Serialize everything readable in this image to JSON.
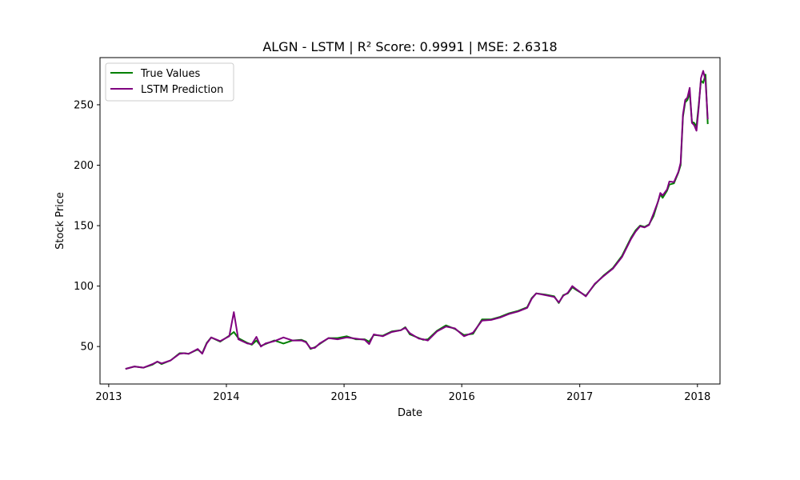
{
  "chart_data": {
    "type": "line",
    "title": "ALGN - LSTM | R² Score: 0.9991 | MSE: 2.6318",
    "xlabel": "Date",
    "ylabel": "Stock Price",
    "x_ticks": [
      "2013",
      "2014",
      "2015",
      "2016",
      "2017",
      "2018"
    ],
    "y_ticks": [
      50,
      100,
      150,
      200,
      250
    ],
    "xlim": [
      "2012-12-05",
      "2018-03-12"
    ],
    "ylim": [
      19,
      289
    ],
    "legend_position": "upper-left",
    "grid": false,
    "series": [
      {
        "name": "True Values",
        "color": "#008000",
        "points": [
          [
            "2013-02-22",
            31.5
          ],
          [
            "2013-03-22",
            33.5
          ],
          [
            "2013-04-19",
            32.5
          ],
          [
            "2013-05-17",
            35.0
          ],
          [
            "2013-06-01",
            37.5
          ],
          [
            "2013-06-14",
            35.5
          ],
          [
            "2013-07-12",
            38.5
          ],
          [
            "2013-08-09",
            44.5
          ],
          [
            "2013-08-23",
            44.5
          ],
          [
            "2013-09-06",
            44.0
          ],
          [
            "2013-10-04",
            47.5
          ],
          [
            "2013-10-18",
            44.5
          ],
          [
            "2013-11-01",
            53.0
          ],
          [
            "2013-11-15",
            57.5
          ],
          [
            "2013-12-13",
            54.0
          ],
          [
            "2014-01-10",
            59.0
          ],
          [
            "2014-01-24",
            62.0
          ],
          [
            "2014-02-07",
            57.0
          ],
          [
            "2014-03-07",
            53.0
          ],
          [
            "2014-03-21",
            51.5
          ],
          [
            "2014-04-04",
            55.0
          ],
          [
            "2014-04-18",
            50.5
          ],
          [
            "2014-05-02",
            52.0
          ],
          [
            "2014-05-30",
            55.0
          ],
          [
            "2014-06-27",
            52.5
          ],
          [
            "2014-07-25",
            55.0
          ],
          [
            "2014-08-22",
            55.5
          ],
          [
            "2014-09-05",
            54.0
          ],
          [
            "2014-09-19",
            48.0
          ],
          [
            "2014-10-03",
            49.5
          ],
          [
            "2014-10-17",
            52.0
          ],
          [
            "2014-11-14",
            57.0
          ],
          [
            "2014-12-12",
            57.0
          ],
          [
            "2015-01-09",
            58.5
          ],
          [
            "2015-02-06",
            56.0
          ],
          [
            "2015-03-06",
            56.0
          ],
          [
            "2015-03-20",
            54.0
          ],
          [
            "2015-04-03",
            59.5
          ],
          [
            "2015-05-01",
            59.0
          ],
          [
            "2015-05-29",
            62.5
          ],
          [
            "2015-06-26",
            63.5
          ],
          [
            "2015-07-10",
            66.0
          ],
          [
            "2015-07-24",
            60.0
          ],
          [
            "2015-08-21",
            57.0
          ],
          [
            "2015-09-04",
            55.5
          ],
          [
            "2015-09-18",
            56.0
          ],
          [
            "2015-10-16",
            63.0
          ],
          [
            "2015-11-13",
            67.5
          ],
          [
            "2015-12-11",
            64.5
          ],
          [
            "2016-01-08",
            59.5
          ],
          [
            "2016-02-05",
            60.5
          ],
          [
            "2016-03-04",
            72.5
          ],
          [
            "2016-04-01",
            72.5
          ],
          [
            "2016-04-29",
            74.5
          ],
          [
            "2016-05-27",
            77.5
          ],
          [
            "2016-06-24",
            79.5
          ],
          [
            "2016-07-22",
            82.5
          ],
          [
            "2016-08-05",
            90.0
          ],
          [
            "2016-08-19",
            94.0
          ],
          [
            "2016-09-16",
            93.0
          ],
          [
            "2016-10-14",
            91.5
          ],
          [
            "2016-10-28",
            86.0
          ],
          [
            "2016-11-11",
            92.5
          ],
          [
            "2016-11-25",
            94.0
          ],
          [
            "2016-12-09",
            99.0
          ],
          [
            "2016-12-23",
            96.5
          ],
          [
            "2017-01-20",
            92.0
          ],
          [
            "2017-02-17",
            101.5
          ],
          [
            "2017-03-17",
            109.0
          ],
          [
            "2017-04-14",
            115.0
          ],
          [
            "2017-05-12",
            125.0
          ],
          [
            "2017-06-09",
            140.0
          ],
          [
            "2017-06-23",
            146.0
          ],
          [
            "2017-07-07",
            150.0
          ],
          [
            "2017-07-21",
            149.0
          ],
          [
            "2017-08-04",
            151.0
          ],
          [
            "2017-08-18",
            158.0
          ],
          [
            "2017-09-01",
            170.0
          ],
          [
            "2017-09-08",
            176.0
          ],
          [
            "2017-09-15",
            173.0
          ],
          [
            "2017-09-29",
            179.0
          ],
          [
            "2017-10-06",
            184.0
          ],
          [
            "2017-10-20",
            185.0
          ],
          [
            "2017-11-03",
            194.0
          ],
          [
            "2017-11-10",
            200.0
          ],
          [
            "2017-11-17",
            240.0
          ],
          [
            "2017-11-24",
            252.0
          ],
          [
            "2017-12-01",
            254.0
          ],
          [
            "2017-12-08",
            260.0
          ],
          [
            "2017-12-15",
            236.0
          ],
          [
            "2017-12-22",
            235.0
          ],
          [
            "2017-12-29",
            232.0
          ],
          [
            "2018-01-05",
            250.0
          ],
          [
            "2018-01-12",
            270.0
          ],
          [
            "2018-01-19",
            268.0
          ],
          [
            "2018-01-26",
            275.0
          ],
          [
            "2018-02-02",
            234.0
          ]
        ]
      },
      {
        "name": "LSTM Prediction",
        "color": "#800080",
        "points": [
          [
            "2013-02-22",
            31.5
          ],
          [
            "2013-03-22",
            33.5
          ],
          [
            "2013-04-19",
            32.5
          ],
          [
            "2013-05-17",
            35.5
          ],
          [
            "2013-06-01",
            37.5
          ],
          [
            "2013-06-14",
            36.0
          ],
          [
            "2013-07-12",
            38.5
          ],
          [
            "2013-08-09",
            44.0
          ],
          [
            "2013-08-23",
            44.5
          ],
          [
            "2013-09-06",
            44.0
          ],
          [
            "2013-10-04",
            48.0
          ],
          [
            "2013-10-18",
            44.0
          ],
          [
            "2013-11-01",
            52.5
          ],
          [
            "2013-11-15",
            57.5
          ],
          [
            "2013-12-13",
            54.5
          ],
          [
            "2014-01-10",
            58.5
          ],
          [
            "2014-01-24",
            78.5
          ],
          [
            "2014-02-07",
            56.0
          ],
          [
            "2014-03-07",
            52.5
          ],
          [
            "2014-03-21",
            52.0
          ],
          [
            "2014-04-04",
            58.0
          ],
          [
            "2014-04-18",
            50.0
          ],
          [
            "2014-05-02",
            52.5
          ],
          [
            "2014-05-30",
            54.5
          ],
          [
            "2014-06-27",
            57.5
          ],
          [
            "2014-07-25",
            55.0
          ],
          [
            "2014-08-22",
            55.0
          ],
          [
            "2014-09-05",
            53.5
          ],
          [
            "2014-09-19",
            48.5
          ],
          [
            "2014-10-03",
            49.0
          ],
          [
            "2014-10-17",
            52.5
          ],
          [
            "2014-11-14",
            57.0
          ],
          [
            "2014-12-12",
            56.0
          ],
          [
            "2015-01-09",
            57.5
          ],
          [
            "2015-02-06",
            56.5
          ],
          [
            "2015-03-06",
            55.5
          ],
          [
            "2015-03-20",
            52.0
          ],
          [
            "2015-04-03",
            60.0
          ],
          [
            "2015-05-01",
            58.5
          ],
          [
            "2015-05-29",
            62.0
          ],
          [
            "2015-06-26",
            63.5
          ],
          [
            "2015-07-10",
            65.5
          ],
          [
            "2015-07-24",
            61.0
          ],
          [
            "2015-08-21",
            56.5
          ],
          [
            "2015-09-04",
            56.0
          ],
          [
            "2015-09-18",
            55.0
          ],
          [
            "2015-10-16",
            62.5
          ],
          [
            "2015-11-13",
            66.5
          ],
          [
            "2015-12-11",
            65.0
          ],
          [
            "2016-01-08",
            58.5
          ],
          [
            "2016-02-05",
            61.5
          ],
          [
            "2016-03-04",
            71.5
          ],
          [
            "2016-04-01",
            72.0
          ],
          [
            "2016-04-29",
            74.0
          ],
          [
            "2016-05-27",
            77.0
          ],
          [
            "2016-06-24",
            79.0
          ],
          [
            "2016-07-22",
            82.0
          ],
          [
            "2016-08-05",
            89.5
          ],
          [
            "2016-08-19",
            94.0
          ],
          [
            "2016-09-16",
            92.5
          ],
          [
            "2016-10-14",
            91.0
          ],
          [
            "2016-10-28",
            86.5
          ],
          [
            "2016-11-11",
            92.0
          ],
          [
            "2016-11-25",
            94.5
          ],
          [
            "2016-12-09",
            100.0
          ],
          [
            "2016-12-23",
            97.0
          ],
          [
            "2017-01-20",
            91.5
          ],
          [
            "2017-02-17",
            102.0
          ],
          [
            "2017-03-17",
            108.5
          ],
          [
            "2017-04-14",
            114.5
          ],
          [
            "2017-05-12",
            124.0
          ],
          [
            "2017-06-09",
            139.0
          ],
          [
            "2017-06-23",
            145.0
          ],
          [
            "2017-07-07",
            149.5
          ],
          [
            "2017-07-21",
            148.5
          ],
          [
            "2017-08-04",
            150.5
          ],
          [
            "2017-08-18",
            160.0
          ],
          [
            "2017-09-01",
            170.0
          ],
          [
            "2017-09-08",
            177.0
          ],
          [
            "2017-09-15",
            175.0
          ],
          [
            "2017-09-29",
            180.0
          ],
          [
            "2017-10-06",
            186.5
          ],
          [
            "2017-10-20",
            186.0
          ],
          [
            "2017-11-03",
            194.5
          ],
          [
            "2017-11-10",
            202.0
          ],
          [
            "2017-11-17",
            242.0
          ],
          [
            "2017-11-24",
            254.0
          ],
          [
            "2017-12-01",
            256.0
          ],
          [
            "2017-12-08",
            264.0
          ],
          [
            "2017-12-15",
            235.0
          ],
          [
            "2017-12-22",
            233.0
          ],
          [
            "2017-12-29",
            228.5
          ],
          [
            "2018-01-05",
            248.0
          ],
          [
            "2018-01-12",
            272.0
          ],
          [
            "2018-01-19",
            278.0
          ],
          [
            "2018-01-26",
            270.0
          ],
          [
            "2018-02-02",
            238.0
          ]
        ]
      }
    ]
  }
}
